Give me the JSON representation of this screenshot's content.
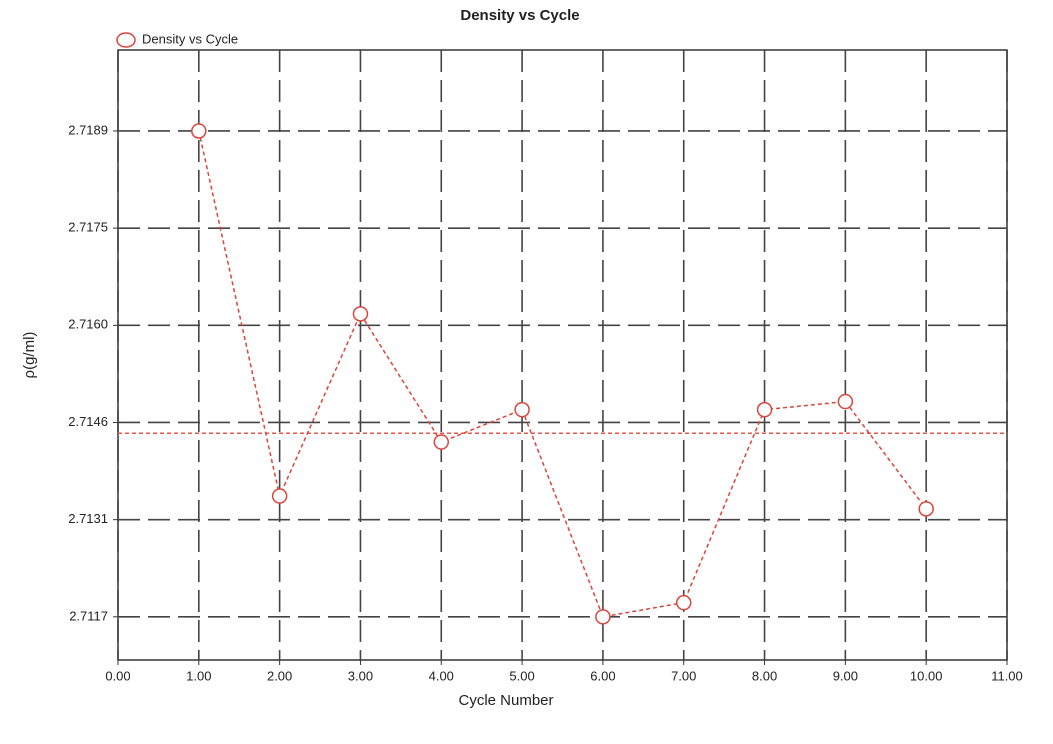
{
  "chart_data": {
    "type": "line",
    "title": "Density vs Cycle",
    "x_label": "Cycle Number",
    "y_label": "ρ(g/ml)",
    "x": [
      1,
      2,
      3,
      4,
      5,
      6,
      7,
      8,
      9,
      10
    ],
    "series": [
      {
        "name": "Density vs Cycle",
        "color": "#d9463c",
        "values": [
          2.7189,
          2.71349,
          2.71619,
          2.71429,
          2.71477,
          2.7117,
          2.71191,
          2.71477,
          2.71489,
          2.7133
        ]
      }
    ],
    "reference_line": {
      "value": 2.71442,
      "color": "#e0584c"
    },
    "xlim": [
      0,
      11
    ],
    "xticks": [
      {
        "value": 0,
        "label": "0.00"
      },
      {
        "value": 1,
        "label": "1.00"
      },
      {
        "value": 2,
        "label": "2.00"
      },
      {
        "value": 3,
        "label": "3.00"
      },
      {
        "value": 4,
        "label": "4.00"
      },
      {
        "value": 5,
        "label": "5.00"
      },
      {
        "value": 6,
        "label": "6.00"
      },
      {
        "value": 7,
        "label": "7.00"
      },
      {
        "value": 8,
        "label": "8.00"
      },
      {
        "value": 9,
        "label": "9.00"
      },
      {
        "value": 10,
        "label": "10.00"
      },
      {
        "value": 11,
        "label": "11.00"
      }
    ],
    "ylim": [
      2.71106,
      2.7201
    ],
    "yticks": [
      {
        "value": 2.7117,
        "label": "2.7117"
      },
      {
        "value": 2.71314,
        "label": "2.7131"
      },
      {
        "value": 2.71458,
        "label": "2.7146"
      },
      {
        "value": 2.71602,
        "label": "2.7160"
      },
      {
        "value": 2.71746,
        "label": "2.7175"
      },
      {
        "value": 2.7189,
        "label": "2.7189"
      }
    ],
    "grid": true,
    "legend": "top-left"
  }
}
